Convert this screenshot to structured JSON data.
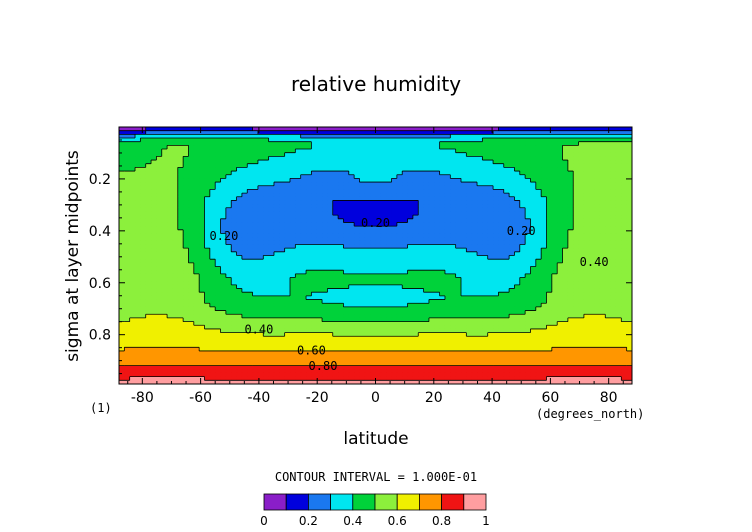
{
  "chart_data": {
    "type": "heatmap",
    "subtype": "filled-contour",
    "title": "relative humidity",
    "xlabel": "latitude",
    "ylabel": "sigma at layer midpoints",
    "x_units": "(degrees_north)",
    "frame_label": "(1)",
    "xlim": [
      -88,
      88
    ],
    "ylim": [
      0.99,
      0.0
    ],
    "x_ticks": [
      -80,
      -60,
      -40,
      -20,
      0,
      20,
      40,
      60,
      80
    ],
    "x_tick_labels": [
      "-80",
      "-60",
      "-40",
      "-20",
      "0",
      "20",
      "40",
      "60",
      "80"
    ],
    "y_ticks": [
      0.2,
      0.4,
      0.6,
      0.8
    ],
    "y_tick_labels": [
      "0.2",
      "0.4",
      "0.6",
      "0.8"
    ],
    "contour_interval_text": "CONTOUR INTERVAL = 1.000E-01",
    "colorbar": {
      "levels": [
        0,
        0.1,
        0.2,
        0.3,
        0.4,
        0.5,
        0.6,
        0.7,
        0.8,
        0.9,
        1.0
      ],
      "colors": [
        "#8a1ec8",
        "#0000dd",
        "#1a78f0",
        "#00e6f0",
        "#00d23a",
        "#8cf03c",
        "#f0f000",
        "#ff9600",
        "#f01414",
        "#ff9ea0"
      ],
      "tick_labels": [
        "0",
        "0.2",
        "0.4",
        "0.6",
        "0.8",
        "1"
      ],
      "tick_values": [
        0,
        0.2,
        0.4,
        0.6,
        0.8,
        1.0
      ]
    },
    "contour_labels": [
      {
        "text": "0.20",
        "lat": 0,
        "sigma": 0.37
      },
      {
        "text": "0.20",
        "lat": -52,
        "sigma": 0.42
      },
      {
        "text": "0.20",
        "lat": 50,
        "sigma": 0.4
      },
      {
        "text": "0.40",
        "lat": 75,
        "sigma": 0.52
      },
      {
        "text": "0.40",
        "lat": -40,
        "sigma": 0.78
      },
      {
        "text": "0.60",
        "lat": -22,
        "sigma": 0.86
      },
      {
        "text": "0.80",
        "lat": -18,
        "sigma": 0.92
      }
    ],
    "grid": false,
    "legend_position": "bottom"
  }
}
